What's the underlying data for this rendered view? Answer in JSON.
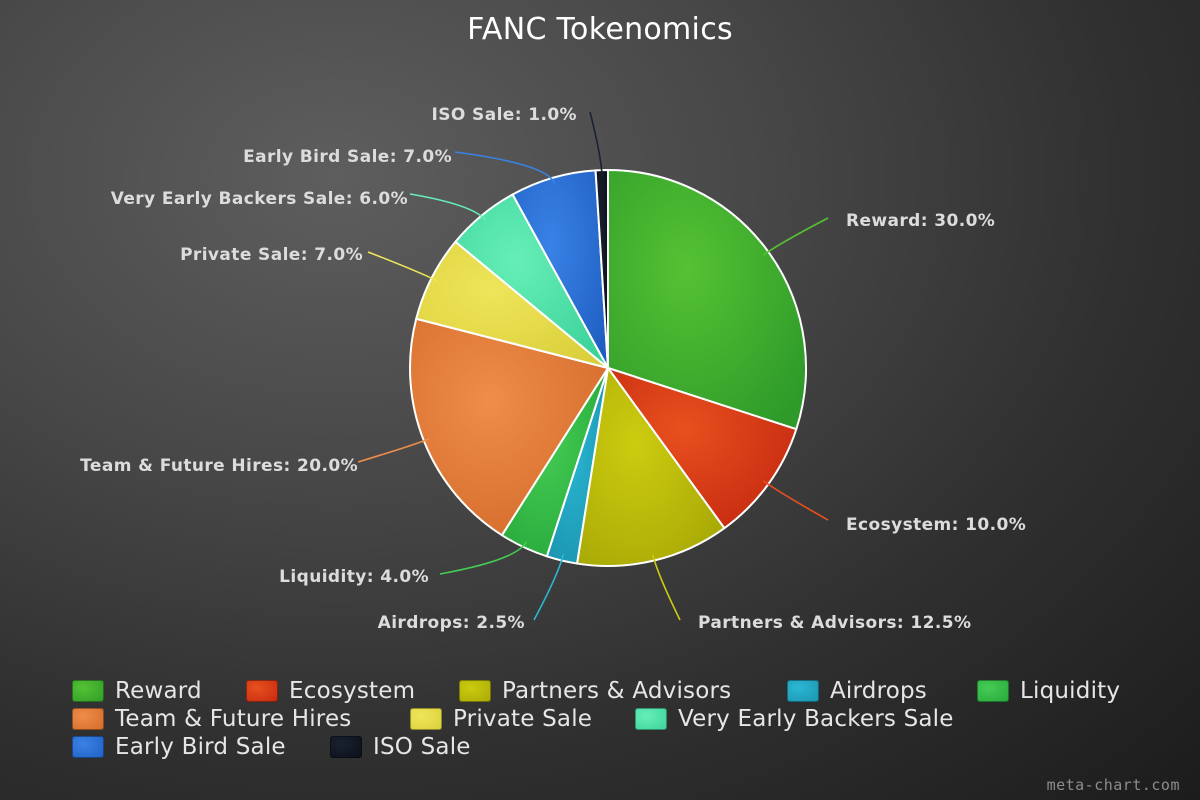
{
  "chart_data": {
    "type": "pie",
    "title": "FANC Tokenomics",
    "slices": [
      {
        "name": "Reward",
        "value": 30.0,
        "label": "Reward: 30.0%",
        "color": "#2e9a2a",
        "color_light": "#55c233"
      },
      {
        "name": "Ecosystem",
        "value": 10.0,
        "label": "Ecosystem: 10.0%",
        "color": "#c42810",
        "color_light": "#e8501e"
      },
      {
        "name": "Partners & Advisors",
        "value": 12.5,
        "label": "Partners & Advisors: 12.5%",
        "color": "#a8a806",
        "color_light": "#cccc10"
      },
      {
        "name": "Airdrops",
        "value": 2.5,
        "label": "Airdrops: 2.5%",
        "color": "#1a93ad",
        "color_light": "#2bb7d4"
      },
      {
        "name": "Liquidity",
        "value": 4.0,
        "label": "Liquidity: 4.0%",
        "color": "#27a83a",
        "color_light": "#45cc55"
      },
      {
        "name": "Team & Future Hires",
        "value": 20.0,
        "label": "Team & Future Hires: 20.0%",
        "color": "#d36a2a",
        "color_light": "#ef8d4a"
      },
      {
        "name": "Private Sale",
        "value": 7.0,
        "label": "Private Sale: 7.0%",
        "color": "#d9cf3a",
        "color_light": "#efe55a"
      },
      {
        "name": "Very Early Backers Sale",
        "value": 6.0,
        "label": "Very Early Backers Sale: 6.0%",
        "color": "#3cd29a",
        "color_light": "#66eeb8"
      },
      {
        "name": "Early Bird Sale",
        "value": 7.0,
        "label": "Early Bird Sale: 7.0%",
        "color": "#1f5fc2",
        "color_light": "#3a82e6"
      },
      {
        "name": "ISO Sale",
        "value": 1.0,
        "label": "ISO Sale: 1.0%",
        "color": "#0a0f18",
        "color_light": "#1a2230"
      }
    ],
    "start_angle": "12 o'clock",
    "direction": "clockwise",
    "legend_position": "bottom"
  },
  "watermark": "meta-chart.com"
}
